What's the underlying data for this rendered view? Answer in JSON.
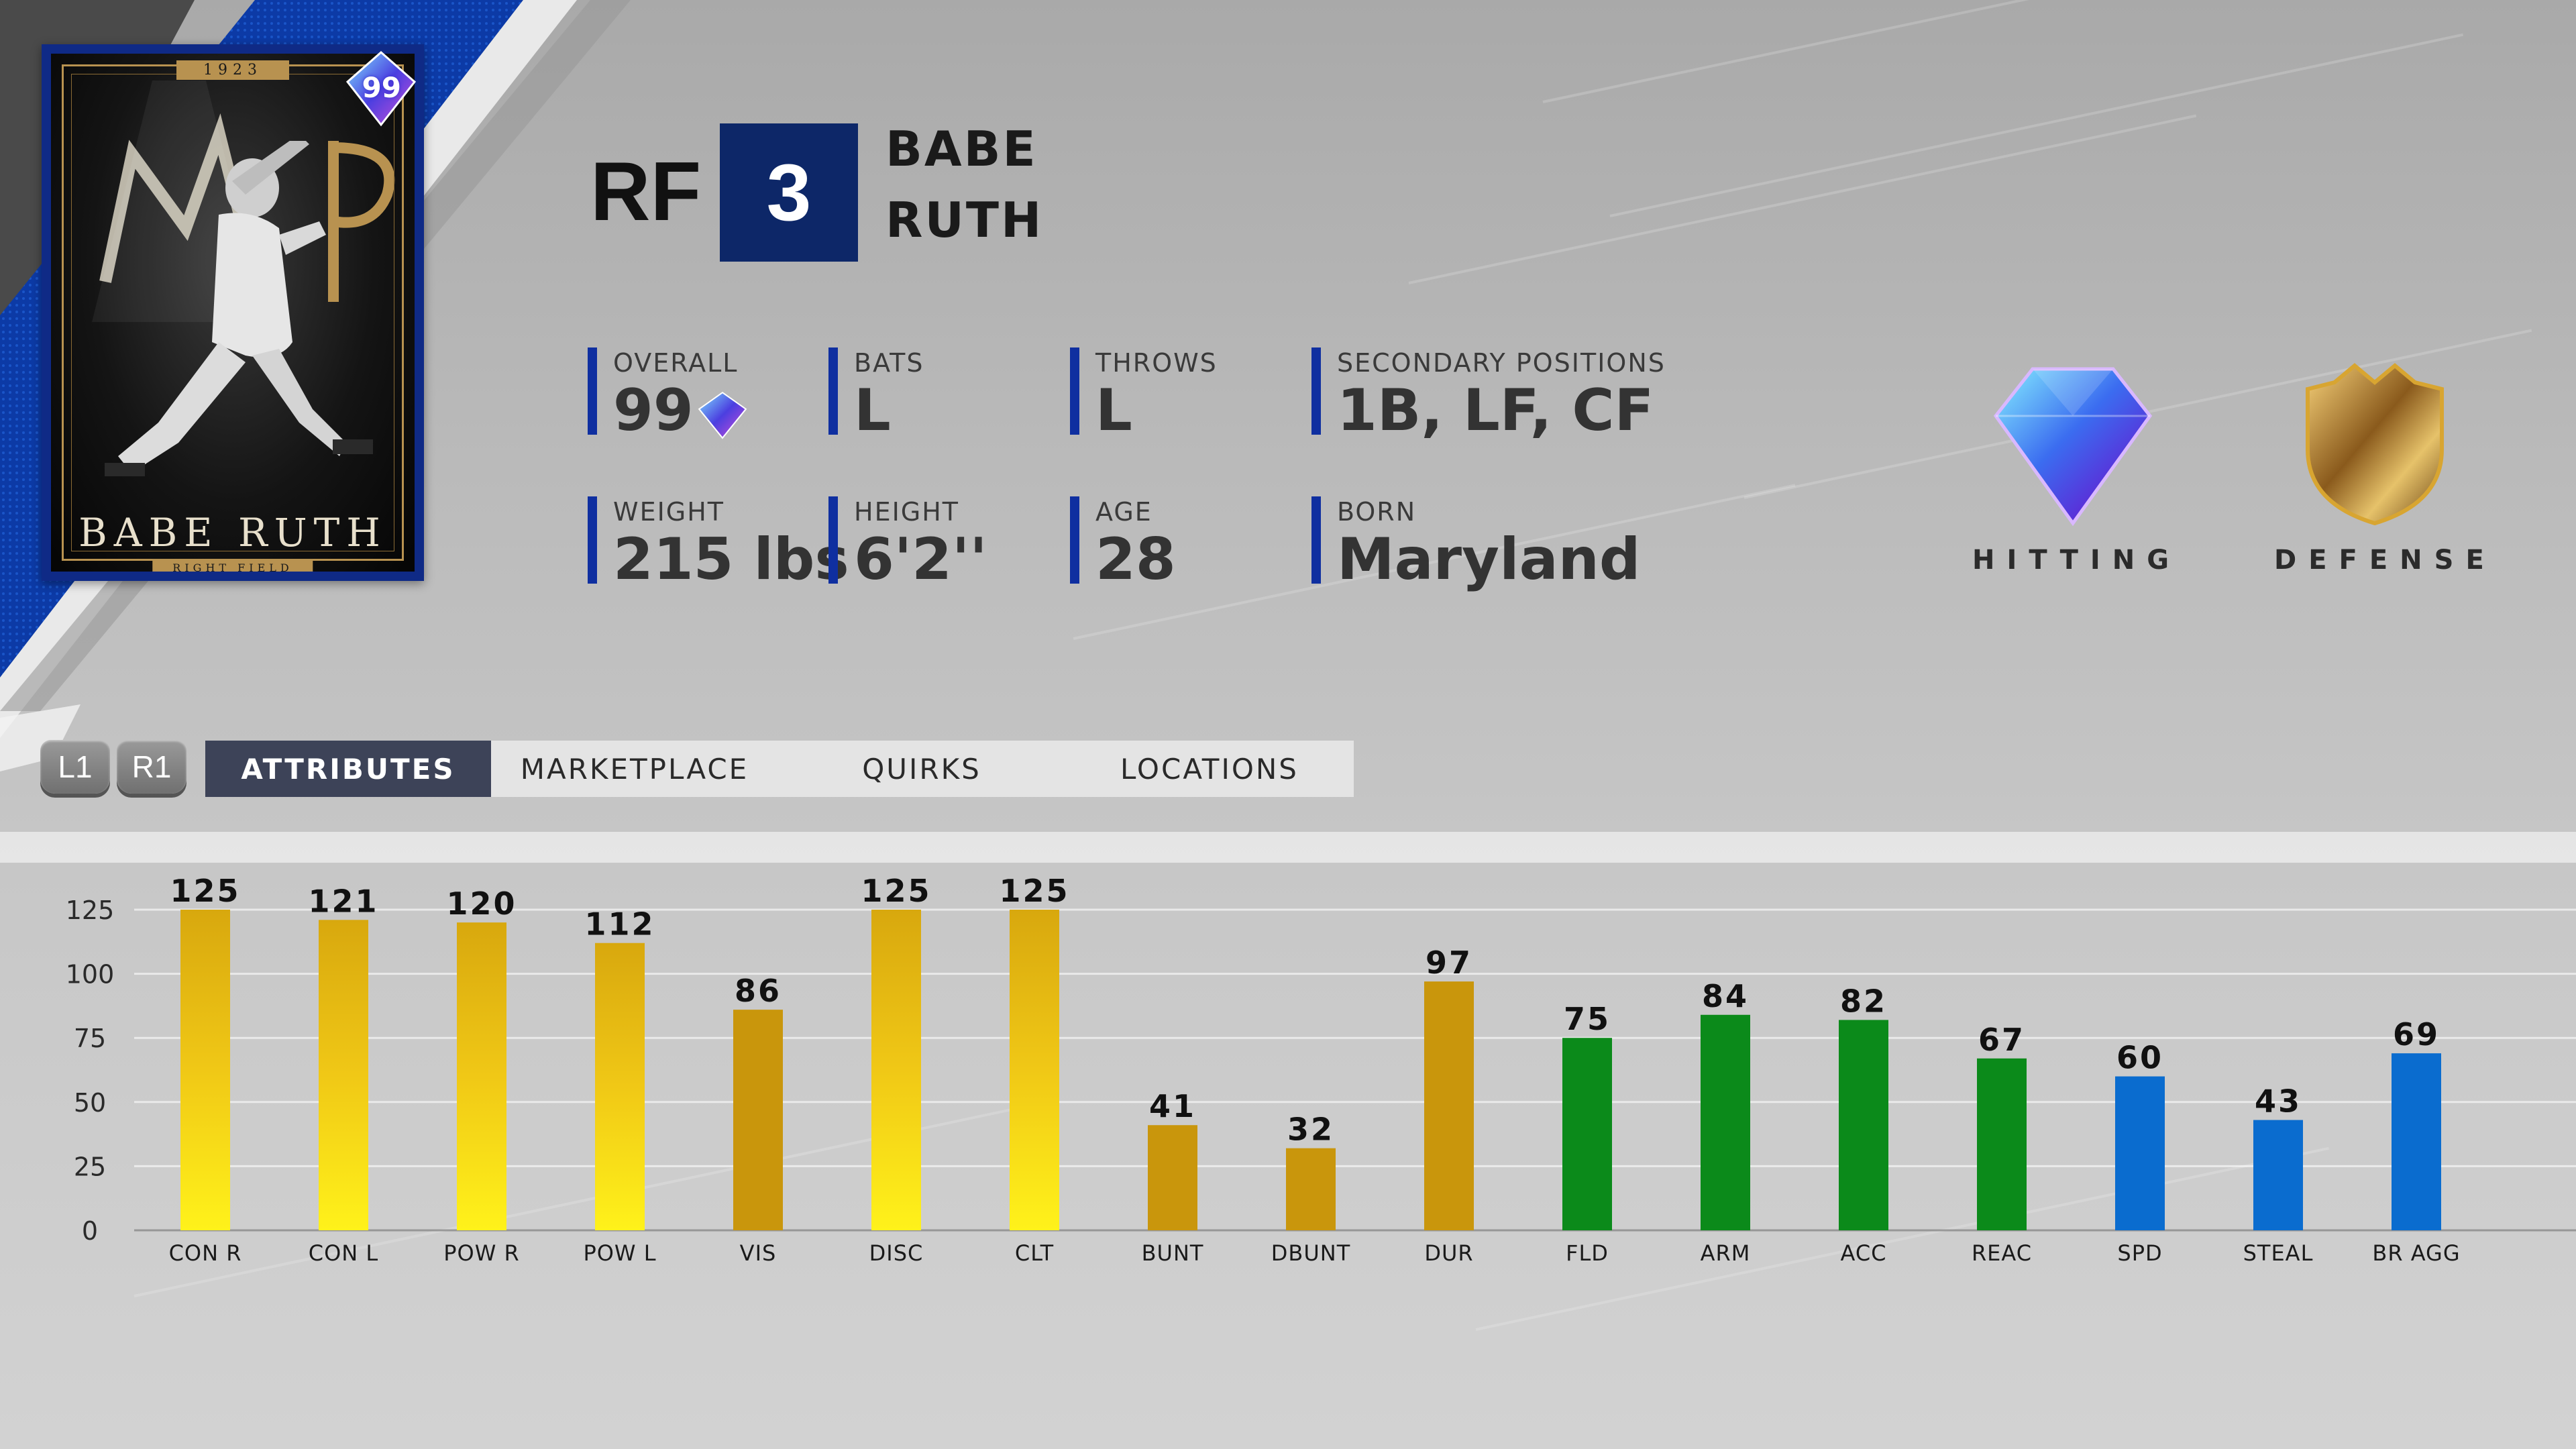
{
  "card": {
    "year": "1923",
    "overall_badge": "99",
    "name": "BABE RUTH",
    "position": "RIGHT FIELD",
    "background_color": "#0f2a86",
    "gold_color": "#b89250"
  },
  "header": {
    "position": "RF",
    "number": "3",
    "first_name": "BABE",
    "last_name": "RUTH",
    "number_box_color": "#0d2768"
  },
  "info": {
    "overall": {
      "label": "OVERALL",
      "value": "99",
      "icon": "diamond-gem-icon"
    },
    "bats": {
      "label": "BATS",
      "value": "L"
    },
    "throws": {
      "label": "THROWS",
      "value": "L"
    },
    "secondary_positions": {
      "label": "SECONDARY POSITIONS",
      "value": "1B, LF, CF"
    },
    "weight": {
      "label": "WEIGHT",
      "value": "215 lbs"
    },
    "height": {
      "label": "HEIGHT",
      "value": "6'2''"
    },
    "age": {
      "label": "AGE",
      "value": "28"
    },
    "born": {
      "label": "BORN",
      "value": "Maryland"
    },
    "accent_color": "#0f2fa0"
  },
  "badges": [
    {
      "label": "HITTING",
      "icon": "diamond-gem-icon"
    },
    {
      "label": "DEFENSE",
      "icon": "gold-shield-icon"
    }
  ],
  "shoulder_buttons": [
    "L1",
    "R1"
  ],
  "tabs": [
    {
      "label": "ATTRIBUTES",
      "active": true
    },
    {
      "label": "MARKETPLACE",
      "active": false
    },
    {
      "label": "QUIRKS",
      "active": false
    },
    {
      "label": "LOCATIONS",
      "active": false
    }
  ],
  "chart_data": {
    "type": "bar",
    "categories": [
      "CON R",
      "CON L",
      "POW R",
      "POW L",
      "VIS",
      "DISC",
      "CLT",
      "BUNT",
      "DBUNT",
      "DUR",
      "FLD",
      "ARM",
      "ACC",
      "REAC",
      "SPD",
      "STEAL",
      "BR AGG"
    ],
    "values": [
      125,
      121,
      120,
      112,
      86,
      125,
      125,
      41,
      32,
      97,
      75,
      84,
      82,
      67,
      60,
      43,
      69
    ],
    "groups": [
      "hitting",
      "hitting",
      "hitting",
      "hitting",
      "hitting",
      "hitting",
      "hitting",
      "hitting",
      "hitting",
      "hitting",
      "defense",
      "defense",
      "defense",
      "defense",
      "running",
      "running",
      "running"
    ],
    "ylim": [
      0,
      125
    ],
    "yticks": [
      0,
      25,
      50,
      75,
      100,
      125
    ],
    "grid": true,
    "colors": {
      "hitting": "#c9960c",
      "hitting_boosted": "#ffe81a",
      "defense": "#0b8a1a",
      "running": "#0a6ccf"
    }
  }
}
